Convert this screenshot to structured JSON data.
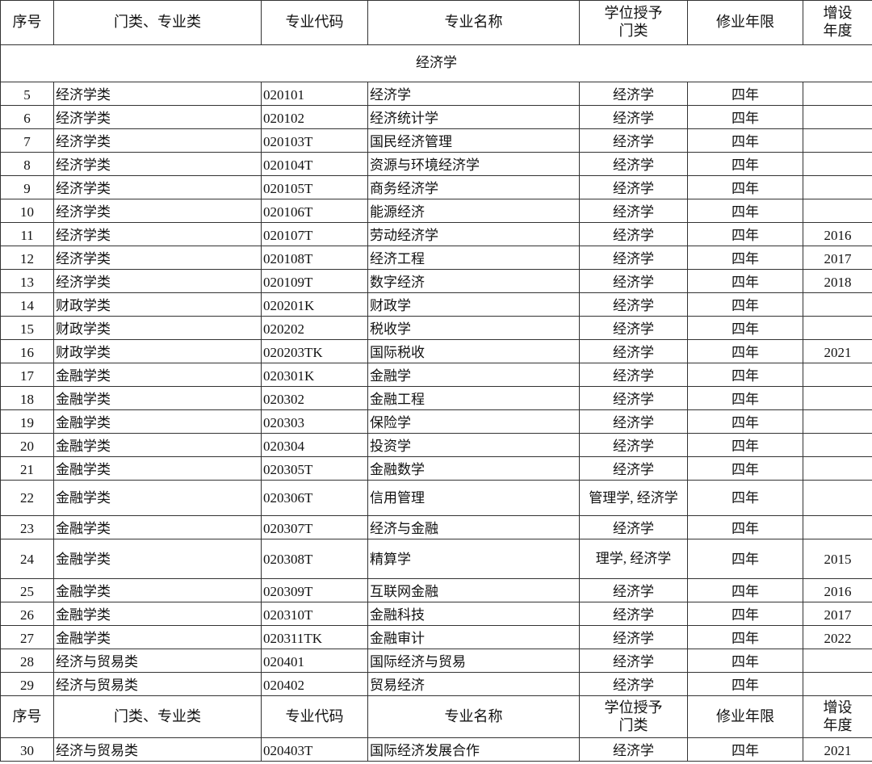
{
  "headers": [
    "序号",
    "门类、专业类",
    "专业代码",
    "专业名称",
    "学位授予\n门类",
    "修业年限",
    "增设\n年度"
  ],
  "category": "经济学",
  "rows": [
    {
      "no": "5",
      "cls": "经济学类",
      "code": "020101",
      "name": "经济学",
      "degree": "经济学",
      "years": "四年",
      "added": ""
    },
    {
      "no": "6",
      "cls": "经济学类",
      "code": "020102",
      "name": "经济统计学",
      "degree": "经济学",
      "years": "四年",
      "added": ""
    },
    {
      "no": "7",
      "cls": "经济学类",
      "code": "020103T",
      "name": "国民经济管理",
      "degree": "经济学",
      "years": "四年",
      "added": ""
    },
    {
      "no": "8",
      "cls": "经济学类",
      "code": "020104T",
      "name": "资源与环境经济学",
      "degree": "经济学",
      "years": "四年",
      "added": ""
    },
    {
      "no": "9",
      "cls": "经济学类",
      "code": "020105T",
      "name": "商务经济学",
      "degree": "经济学",
      "years": "四年",
      "added": ""
    },
    {
      "no": "10",
      "cls": "经济学类",
      "code": "020106T",
      "name": "能源经济",
      "degree": "经济学",
      "years": "四年",
      "added": ""
    },
    {
      "no": "11",
      "cls": "经济学类",
      "code": "020107T",
      "name": "劳动经济学",
      "degree": "经济学",
      "years": "四年",
      "added": "2016"
    },
    {
      "no": "12",
      "cls": "经济学类",
      "code": "020108T",
      "name": "经济工程",
      "degree": "经济学",
      "years": "四年",
      "added": "2017"
    },
    {
      "no": "13",
      "cls": "经济学类",
      "code": "020109T",
      "name": "数字经济",
      "degree": "经济学",
      "years": "四年",
      "added": "2018"
    },
    {
      "no": "14",
      "cls": "财政学类",
      "code": "020201K",
      "name": "财政学",
      "degree": "经济学",
      "years": "四年",
      "added": ""
    },
    {
      "no": "15",
      "cls": "财政学类",
      "code": "020202",
      "name": "税收学",
      "degree": "经济学",
      "years": "四年",
      "added": ""
    },
    {
      "no": "16",
      "cls": "财政学类",
      "code": "020203TK",
      "name": "国际税收",
      "degree": "经济学",
      "years": "四年",
      "added": "2021"
    },
    {
      "no": "17",
      "cls": "金融学类",
      "code": "020301K",
      "name": "金融学",
      "degree": "经济学",
      "years": "四年",
      "added": ""
    },
    {
      "no": "18",
      "cls": "金融学类",
      "code": "020302",
      "name": "金融工程",
      "degree": "经济学",
      "years": "四年",
      "added": ""
    },
    {
      "no": "19",
      "cls": "金融学类",
      "code": "020303",
      "name": "保险学",
      "degree": "经济学",
      "years": "四年",
      "added": ""
    },
    {
      "no": "20",
      "cls": "金融学类",
      "code": "020304",
      "name": "投资学",
      "degree": "经济学",
      "years": "四年",
      "added": ""
    },
    {
      "no": "21",
      "cls": "金融学类",
      "code": "020305T",
      "name": "金融数学",
      "degree": "经济学",
      "years": "四年",
      "added": ""
    },
    {
      "no": "22",
      "cls": "金融学类",
      "code": "020306T",
      "name": "信用管理",
      "degree": "管理学, 经济学",
      "years": "四年",
      "added": ""
    },
    {
      "no": "23",
      "cls": "金融学类",
      "code": "020307T",
      "name": "经济与金融",
      "degree": "经济学",
      "years": "四年",
      "added": ""
    },
    {
      "no": "24",
      "cls": "金融学类",
      "code": "020308T",
      "name": "精算学",
      "degree": "理学, 经济学",
      "years": "四年",
      "added": "2015"
    },
    {
      "no": "25",
      "cls": "金融学类",
      "code": "020309T",
      "name": "互联网金融",
      "degree": "经济学",
      "years": "四年",
      "added": "2016"
    },
    {
      "no": "26",
      "cls": "金融学类",
      "code": "020310T",
      "name": "金融科技",
      "degree": "经济学",
      "years": "四年",
      "added": "2017"
    },
    {
      "no": "27",
      "cls": "金融学类",
      "code": "020311TK",
      "name": "金融审计",
      "degree": "经济学",
      "years": "四年",
      "added": "2022"
    },
    {
      "no": "28",
      "cls": "经济与贸易类",
      "code": "020401",
      "name": "国际经济与贸易",
      "degree": "经济学",
      "years": "四年",
      "added": ""
    },
    {
      "no": "29",
      "cls": "经济与贸易类",
      "code": "020402",
      "name": "贸易经济",
      "degree": "经济学",
      "years": "四年",
      "added": ""
    }
  ],
  "rows_after_repeat_header": [
    {
      "no": "30",
      "cls": "经济与贸易类",
      "code": "020403T",
      "name": "国际经济发展合作",
      "degree": "经济学",
      "years": "四年",
      "added": "2021"
    }
  ]
}
